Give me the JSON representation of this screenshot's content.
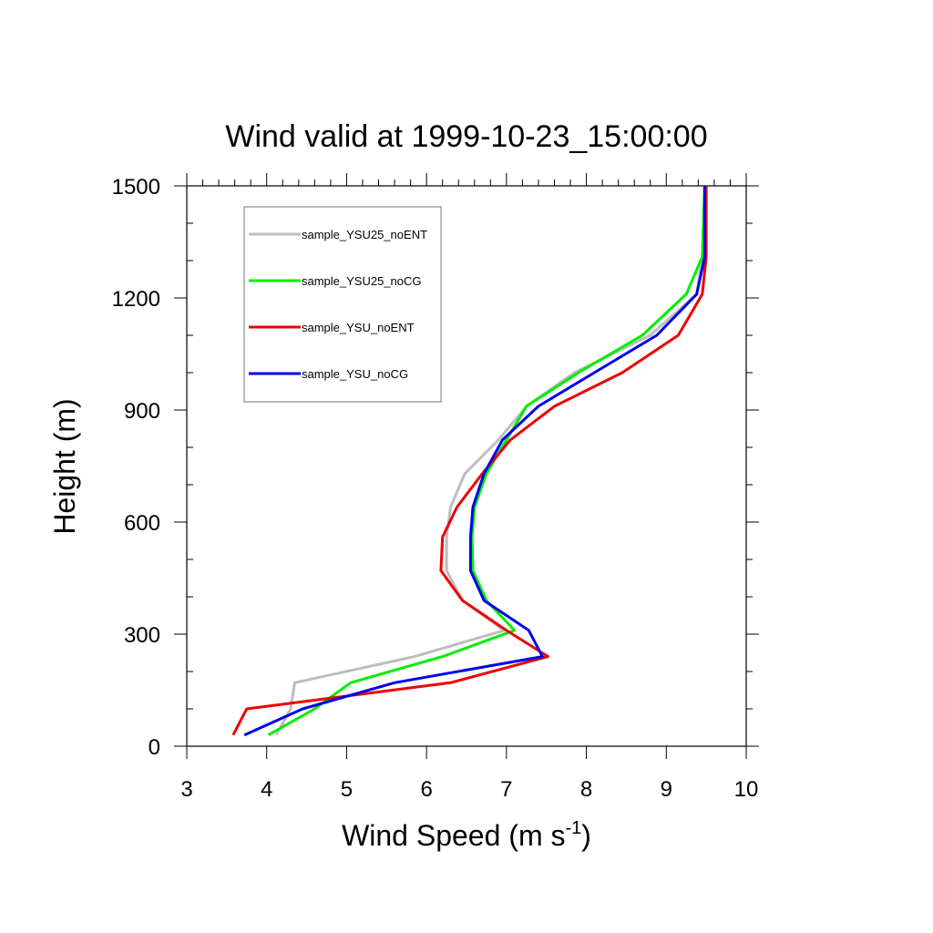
{
  "chart_data": {
    "type": "line",
    "title": "Wind valid at 1999-10-23_15:00:00",
    "xlabel": "Wind Speed (m s",
    "xlabel_sup": "-1",
    "xlabel_close": ")",
    "ylabel": "Height (m)",
    "xlim": [
      3,
      10
    ],
    "ylim": [
      0,
      1500
    ],
    "xticks": [
      3,
      4,
      5,
      6,
      7,
      8,
      9,
      10
    ],
    "yticks": [
      0,
      300,
      600,
      900,
      1200,
      1500
    ],
    "legend_position": "top-left",
    "series": [
      {
        "name": "sample_YSU25_noENT",
        "color": "#bdbdbd",
        "x": [
          4.12,
          4.3,
          4.35,
          5.85,
          6.97,
          6.45,
          6.25,
          6.25,
          6.3,
          6.48,
          6.9,
          7.25,
          7.85,
          8.8,
          9.38,
          9.45,
          9.48
        ],
        "y": [
          30,
          100,
          170,
          240,
          310,
          390,
          470,
          560,
          640,
          730,
          820,
          910,
          1000,
          1100,
          1210,
          1310,
          1500
        ]
      },
      {
        "name": "sample_YSU25_noCG",
        "color": "#00ee00",
        "x": [
          4.02,
          4.6,
          5.05,
          6.2,
          7.1,
          6.75,
          6.58,
          6.57,
          6.6,
          6.75,
          7.0,
          7.25,
          7.9,
          8.7,
          9.25,
          9.45,
          9.48
        ],
        "y": [
          30,
          100,
          170,
          240,
          310,
          390,
          470,
          560,
          640,
          730,
          820,
          910,
          1000,
          1100,
          1210,
          1310,
          1500
        ]
      },
      {
        "name": "sample_YSU_noENT",
        "color": "#ee0000",
        "x": [
          3.58,
          3.75,
          6.3,
          7.52,
          7.0,
          6.45,
          6.18,
          6.2,
          6.38,
          6.7,
          7.05,
          7.6,
          8.45,
          9.15,
          9.45,
          9.5,
          9.5
        ],
        "y": [
          30,
          100,
          170,
          240,
          310,
          390,
          470,
          560,
          640,
          730,
          820,
          910,
          1000,
          1100,
          1210,
          1310,
          1500
        ]
      },
      {
        "name": "sample_YSU_noCG",
        "color": "#0000ee",
        "x": [
          3.72,
          4.45,
          5.6,
          7.45,
          7.28,
          6.72,
          6.55,
          6.55,
          6.58,
          6.72,
          6.95,
          7.4,
          8.1,
          8.88,
          9.38,
          9.48,
          9.48
        ],
        "y": [
          30,
          100,
          170,
          240,
          310,
          390,
          470,
          560,
          640,
          730,
          820,
          910,
          1000,
          1100,
          1210,
          1310,
          1500
        ]
      }
    ]
  }
}
